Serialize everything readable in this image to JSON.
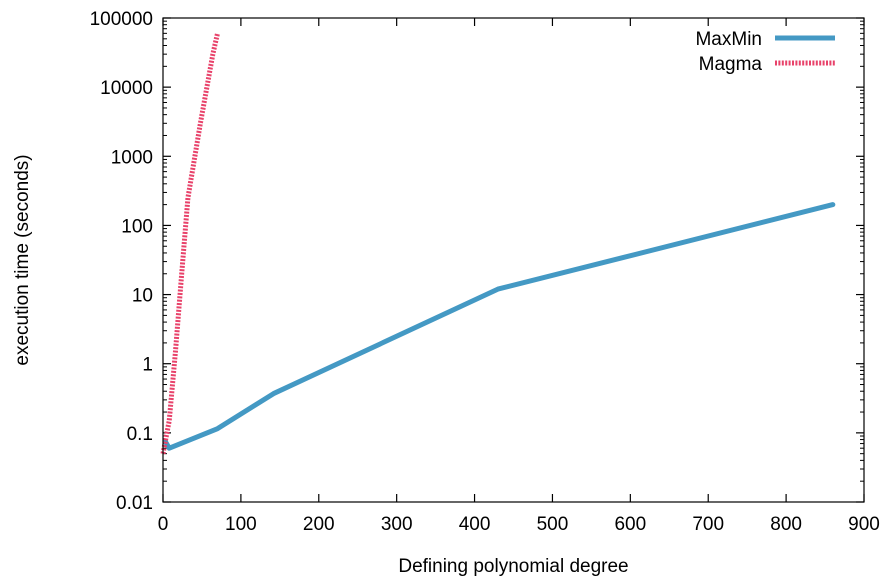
{
  "chart_data": {
    "type": "line",
    "title": "",
    "xlabel": "Defining polynomial degree",
    "ylabel": "execution time (seconds)",
    "xlim": [
      0,
      900
    ],
    "ylim": [
      0.01,
      100000
    ],
    "yscale": "log",
    "grid": false,
    "legend_position": "top-right",
    "x_ticks": [
      0,
      100,
      200,
      300,
      400,
      500,
      600,
      700,
      800,
      900
    ],
    "x_tick_labels": [
      "0",
      "100",
      "200",
      "300",
      "400",
      "500",
      "600",
      "700",
      "800",
      "900"
    ],
    "y_ticks": [
      0.01,
      0.1,
      1,
      10,
      100,
      1000,
      10000,
      100000
    ],
    "y_tick_labels": [
      "0.01",
      "0.1",
      "1",
      "10",
      "100",
      "1000",
      "10000",
      "100000"
    ],
    "series": [
      {
        "name": "MaxMin",
        "color": "#4499c4",
        "style": "solid",
        "x": [
          3,
          8,
          70,
          142,
          430,
          860
        ],
        "y": [
          0.075,
          0.06,
          0.115,
          0.37,
          12,
          200
        ]
      },
      {
        "name": "Magma",
        "color": "#e8426a",
        "style": "dashed",
        "x": [
          0,
          8,
          16,
          24,
          32,
          48,
          64,
          70
        ],
        "y": [
          0.05,
          0.15,
          1.5,
          20,
          250,
          3000,
          30000,
          60000
        ]
      }
    ]
  }
}
